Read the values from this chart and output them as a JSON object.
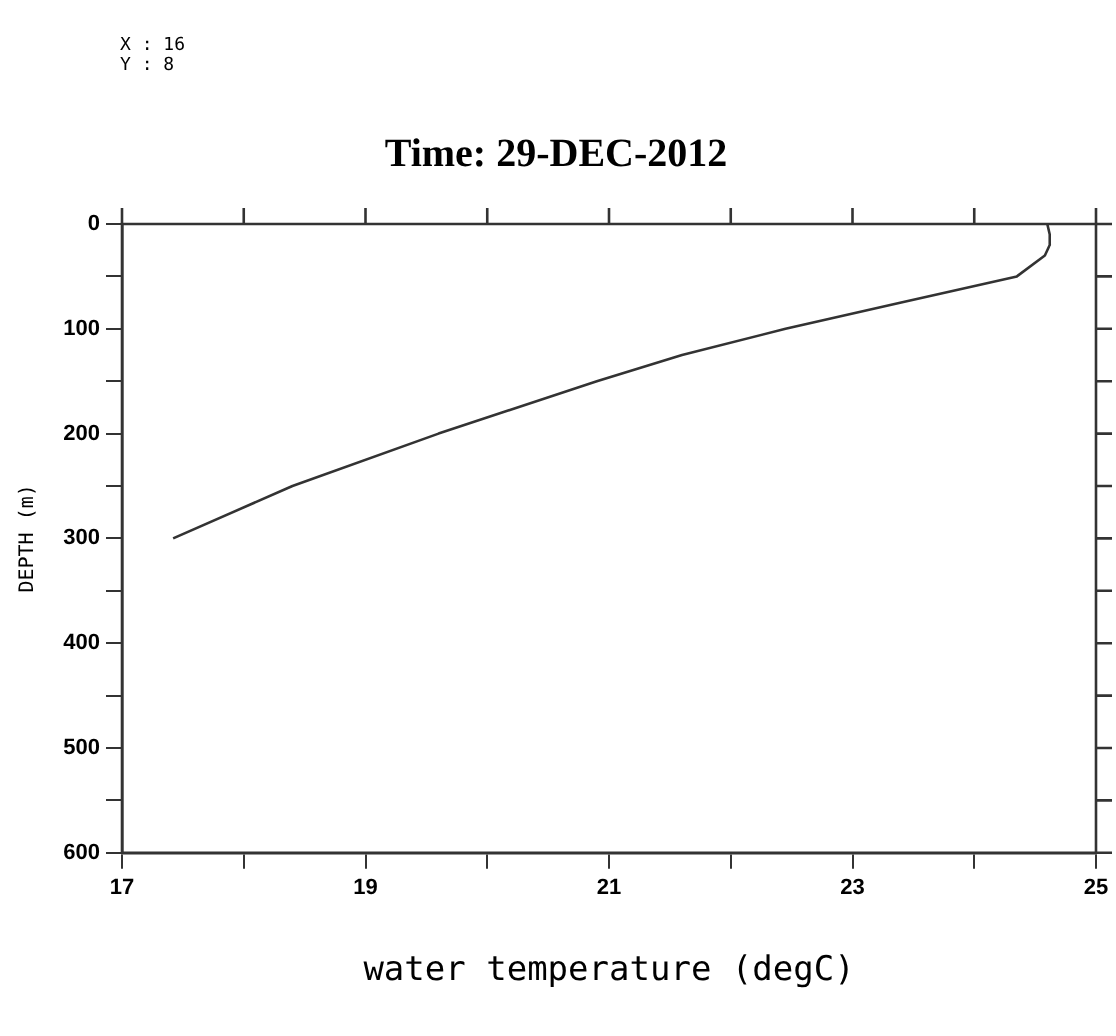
{
  "chart_data": {
    "type": "line",
    "title": "Time: 29-DEC-2012",
    "xlabel": "water temperature (degC)",
    "ylabel": "DEPTH (m)",
    "annotations": [
      "X : 16",
      "Y : 8"
    ],
    "series": [
      {
        "color": "#333333",
        "x": [
          24.6,
          24.62,
          24.62,
          24.58,
          24.35,
          23.4,
          22.45,
          21.6,
          20.9,
          19.6,
          18.4,
          17.42
        ],
        "values": [
          0,
          10,
          20,
          30,
          50,
          75,
          100,
          125,
          150,
          200,
          250,
          300
        ]
      }
    ],
    "xlim": [
      17,
      25
    ],
    "xticks": [
      17,
      {
        "value": 18,
        "label": null
      },
      19,
      {
        "value": 20,
        "label": null
      },
      21,
      {
        "value": 22,
        "label": null
      },
      23,
      {
        "value": 24,
        "label": null
      },
      25
    ],
    "ylim": [
      600,
      0
    ],
    "yticks": [
      0,
      {
        "value": 50,
        "label": null
      },
      100,
      {
        "value": 150,
        "label": null
      },
      200,
      {
        "value": 250,
        "label": null
      },
      300,
      {
        "value": 350,
        "label": null
      },
      400,
      {
        "value": 450,
        "label": null
      },
      500,
      {
        "value": 550,
        "label": null
      },
      600
    ],
    "grid": false,
    "legend": false,
    "marker": "none",
    "line_style": "solid"
  }
}
